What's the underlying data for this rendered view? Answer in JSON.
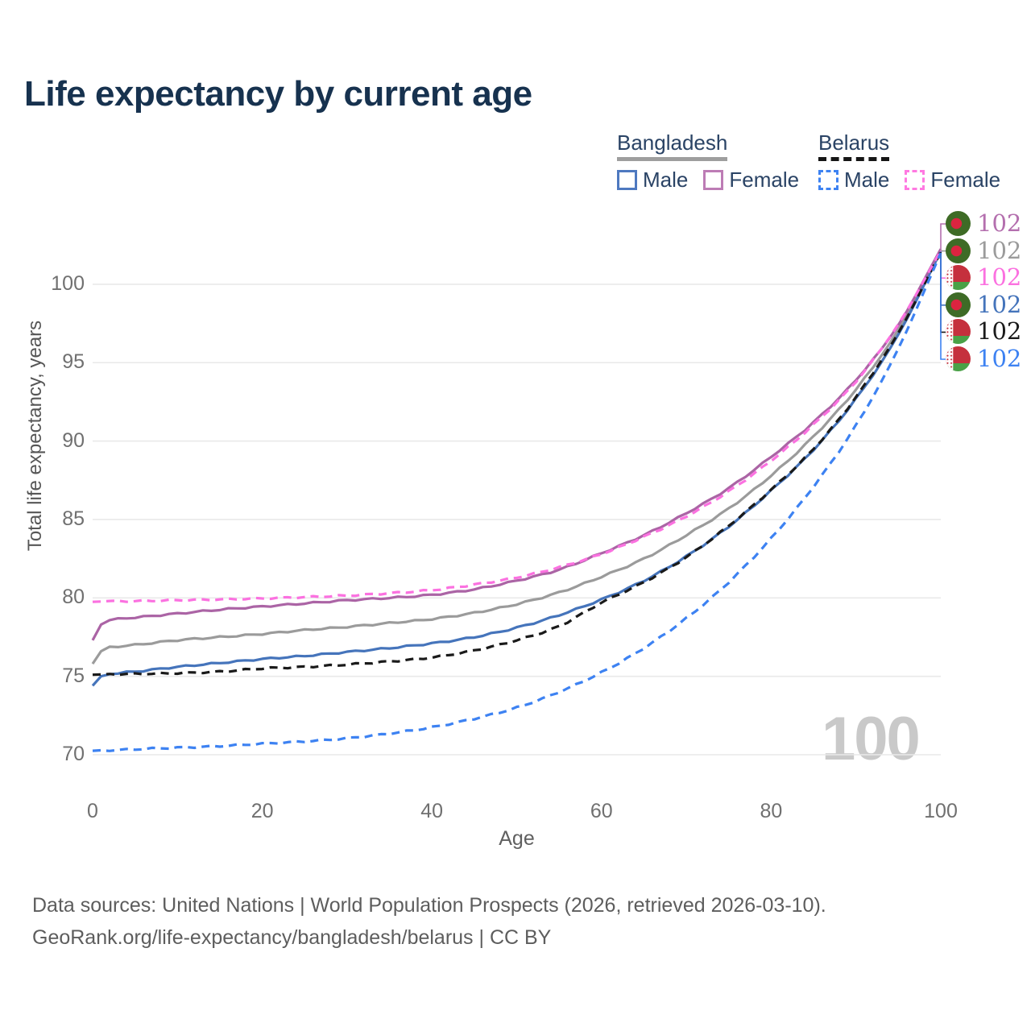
{
  "title": "Life expectancy by current age",
  "legend": {
    "groups": [
      {
        "id": "bangladesh",
        "label": "Bangladesh",
        "line_style": "solid",
        "underline_color": "#9e9e9e",
        "items": [
          {
            "label": "Male",
            "swatch_color": "#4e79c0"
          },
          {
            "label": "Female",
            "swatch_color": "#bd7cb5"
          }
        ]
      },
      {
        "id": "belarus",
        "label": "Belarus",
        "line_style": "dashed",
        "underline_color": "#161616",
        "items": [
          {
            "label": "Male",
            "swatch_color": "#3d82f2"
          },
          {
            "label": "Female",
            "swatch_color": "#ff79e1"
          }
        ]
      }
    ]
  },
  "y_axis": {
    "title": "Total life expectancy, years",
    "ticks": [
      70,
      75,
      80,
      85,
      90,
      95,
      100
    ]
  },
  "x_axis": {
    "title": "Age",
    "ticks": [
      0,
      20,
      40,
      60,
      80,
      100
    ]
  },
  "watermark": "100",
  "footer": {
    "line1": "Data sources: United Nations | World Population Prospects (2026, retrieved 2026-03-10).",
    "line2": "GeoRank.org/life-expectancy/bangladesh/belarus | CC BY"
  },
  "chart_data": {
    "type": "line",
    "title": "Life expectancy by current age",
    "xlabel": "Age",
    "ylabel": "Total life expectancy, years",
    "x_range": [
      0,
      100
    ],
    "y_ticks": [
      70,
      75,
      80,
      85,
      90,
      95,
      100
    ],
    "grid": "horizontal-only",
    "legend_position": "top-right",
    "anchor_ages": [
      0,
      1,
      3,
      5,
      10,
      15,
      20,
      25,
      30,
      35,
      40,
      45,
      50,
      55,
      60,
      65,
      70,
      75,
      80,
      85,
      90,
      95,
      100
    ],
    "series": [
      {
        "name": "Bangladesh Male",
        "country": "Bangladesh",
        "sex": "Male",
        "style": "solid",
        "color": "#4574bb",
        "values": [
          74.4,
          75.0,
          75.2,
          75.3,
          75.6,
          75.85,
          76.1,
          76.3,
          76.55,
          76.8,
          77.1,
          77.5,
          78.1,
          78.9,
          79.9,
          81.1,
          82.65,
          84.55,
          86.85,
          89.45,
          92.7,
          96.8,
          102.1
        ]
      },
      {
        "name": "Bangladesh Female",
        "country": "Bangladesh",
        "sex": "Female",
        "style": "solid",
        "color": "#ab64a5",
        "values": [
          77.3,
          78.3,
          78.65,
          78.75,
          79.0,
          79.25,
          79.45,
          79.65,
          79.85,
          80.0,
          80.2,
          80.55,
          81.1,
          81.8,
          82.85,
          84.0,
          85.4,
          87.0,
          89.0,
          91.2,
          93.9,
          97.4,
          102.25
        ]
      },
      {
        "name": "Bangladesh Both sexes",
        "country": "Bangladesh",
        "sex": "Both",
        "style": "solid",
        "color": "#9b9b9b",
        "values": [
          75.8,
          76.6,
          76.9,
          77.0,
          77.3,
          77.5,
          77.7,
          77.95,
          78.15,
          78.4,
          78.65,
          79.05,
          79.6,
          80.35,
          81.35,
          82.5,
          84.0,
          85.7,
          87.8,
          90.3,
          93.3,
          97.1,
          102.2
        ]
      },
      {
        "name": "Belarus Male",
        "country": "Belarus",
        "sex": "Male",
        "style": "dashed",
        "color": "#3d82f2",
        "values": [
          70.25,
          70.28,
          70.3,
          70.35,
          70.45,
          70.55,
          70.7,
          70.85,
          71.05,
          71.35,
          71.75,
          72.3,
          73.0,
          74.0,
          75.25,
          76.8,
          78.7,
          81.0,
          83.8,
          87.1,
          91.0,
          95.9,
          102.0
        ]
      },
      {
        "name": "Belarus Female",
        "country": "Belarus",
        "sex": "Female",
        "style": "dashed",
        "color": "#fb71e0",
        "values": [
          79.75,
          79.77,
          79.79,
          79.8,
          79.85,
          79.9,
          79.97,
          80.05,
          80.15,
          80.3,
          80.5,
          80.85,
          81.3,
          81.95,
          82.8,
          83.9,
          85.2,
          86.8,
          88.75,
          91.05,
          93.8,
          97.45,
          102.15
        ]
      },
      {
        "name": "Belarus Both sexes",
        "country": "Belarus",
        "sex": "Both",
        "style": "dashed",
        "color": "#1a1a1a",
        "values": [
          75.1,
          75.12,
          75.14,
          75.15,
          75.2,
          75.3,
          75.5,
          75.6,
          75.75,
          75.95,
          76.2,
          76.65,
          77.3,
          78.2,
          79.7,
          81.0,
          82.6,
          84.6,
          86.9,
          89.5,
          92.8,
          96.9,
          102.05
        ]
      }
    ]
  },
  "end_labels": [
    {
      "value": "102",
      "flag": "bangladesh",
      "series": "Bangladesh Female",
      "color": "#b46fae"
    },
    {
      "value": "102",
      "flag": "bangladesh",
      "series": "Bangladesh Both sexes",
      "color": "#9b9b9b"
    },
    {
      "value": "102",
      "flag": "belarus",
      "series": "Belarus Female",
      "color": "#fb71e0"
    },
    {
      "value": "102",
      "flag": "bangladesh",
      "series": "Bangladesh Male",
      "color": "#4574bb"
    },
    {
      "value": "102",
      "flag": "belarus",
      "series": "Belarus Both sexes",
      "color": "#1a1a1a"
    },
    {
      "value": "102",
      "flag": "belarus",
      "series": "Belarus Male",
      "color": "#3d82f2"
    }
  ]
}
